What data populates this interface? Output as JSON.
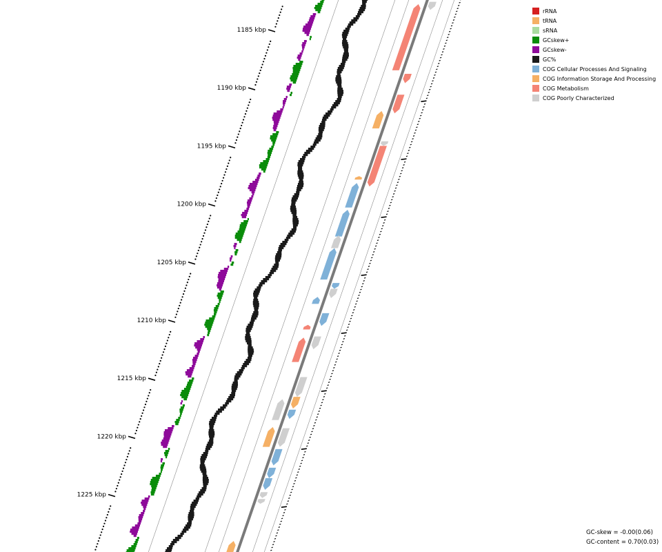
{
  "colors": {
    "rRNA": "#d62020",
    "tRNA": "#f5b065",
    "sRNA": "#a9dba0",
    "gcskew_pos": "#0a8c0a",
    "gcskew_neg": "#8e0a9a",
    "gc_content": "#1a1a1a",
    "cog_cellular": "#7fb1d8",
    "cog_info": "#f5b065",
    "cog_metabolism": "#f48475",
    "cog_poor": "#cfcfcf",
    "backbone": "#7a7a7a"
  },
  "ruler": {
    "labels": [
      "1185 kbp",
      "1190 kbp",
      "1195 kbp",
      "1200 kbp",
      "1205 kbp",
      "1210 kbp",
      "1215 kbp",
      "1220 kbp",
      "1225 kbp"
    ]
  },
  "legend": {
    "items": [
      {
        "label": "rRNA",
        "color": "#d62020"
      },
      {
        "label": "tRNA",
        "color": "#f5b065"
      },
      {
        "label": "sRNA",
        "color": "#a9dba0"
      },
      {
        "label": "GCskew+",
        "color": "#0a8c0a"
      },
      {
        "label": "GCskew-",
        "color": "#8e0a9a"
      },
      {
        "label": "GC%",
        "color": "#1a1a1a"
      },
      {
        "label": "COG Cellular Processes And Signaling",
        "color": "#7fb1d8"
      },
      {
        "label": "COG Information Storage And Processing",
        "color": "#f5b065"
      },
      {
        "label": "COG Metabolism",
        "color": "#f48475"
      },
      {
        "label": "COG Poorly Characterized",
        "color": "#cfcfcf"
      }
    ]
  },
  "stats": {
    "gc_skew": "GC-skew = -0.00(0.06)",
    "gc_content": "GC-content = 0.70(0.03)"
  },
  "features": {
    "forward": [
      {
        "start": 1180.5,
        "end": 1181.3,
        "cog": "cog_metabolism"
      },
      {
        "start": 1182.8,
        "end": 1188.5,
        "cog": "cog_metabolism"
      },
      {
        "start": 1192.0,
        "end": 1193.5,
        "cog": "cog_info"
      },
      {
        "start": 1197.6,
        "end": 1197.9,
        "cog": "cog_info"
      },
      {
        "start": 1198.2,
        "end": 1200.3,
        "cog": "cog_cellular"
      },
      {
        "start": 1200.5,
        "end": 1202.8,
        "cog": "cog_cellular"
      },
      {
        "start": 1202.7,
        "end": 1203.8,
        "cog": "cog_poor"
      },
      {
        "start": 1203.8,
        "end": 1206.5,
        "cog": "cog_cellular"
      },
      {
        "start": 1208.0,
        "end": 1208.6,
        "cog": "cog_cellular"
      },
      {
        "start": 1210.4,
        "end": 1210.8,
        "cog": "cog_metabolism"
      },
      {
        "start": 1211.5,
        "end": 1213.6,
        "cog": "cog_metabolism"
      },
      {
        "start": 1216.8,
        "end": 1218.6,
        "cog": "cog_poor"
      },
      {
        "start": 1219.2,
        "end": 1220.9,
        "cog": "cog_info"
      },
      {
        "start": 1229.0,
        "end": 1230.8,
        "cog": "cog_info"
      },
      {
        "start": 1231.3,
        "end": 1232.0,
        "cog": "cog_poor"
      }
    ],
    "reverse": [
      {
        "start": 1181.3,
        "end": 1182.3,
        "cog": "cog_info"
      },
      {
        "start": 1182.6,
        "end": 1183.3,
        "cog": "cog_poor"
      },
      {
        "start": 1188.8,
        "end": 1189.6,
        "cog": "cog_metabolism"
      },
      {
        "start": 1190.6,
        "end": 1192.2,
        "cog": "cog_metabolism"
      },
      {
        "start": 1194.6,
        "end": 1195.0,
        "cog": "cog_poor"
      },
      {
        "start": 1195.0,
        "end": 1198.5,
        "cog": "cog_metabolism"
      },
      {
        "start": 1206.8,
        "end": 1207.3,
        "cog": "cog_cellular"
      },
      {
        "start": 1207.3,
        "end": 1208.1,
        "cog": "cog_poor"
      },
      {
        "start": 1209.4,
        "end": 1210.5,
        "cog": "cog_cellular"
      },
      {
        "start": 1211.4,
        "end": 1212.5,
        "cog": "cog_poor"
      },
      {
        "start": 1214.9,
        "end": 1216.6,
        "cog": "cog_poor"
      },
      {
        "start": 1216.6,
        "end": 1217.6,
        "cog": "cog_info"
      },
      {
        "start": 1217.7,
        "end": 1218.5,
        "cog": "cog_cellular"
      },
      {
        "start": 1219.3,
        "end": 1220.9,
        "cog": "cog_poor"
      },
      {
        "start": 1221.1,
        "end": 1222.5,
        "cog": "cog_cellular"
      },
      {
        "start": 1222.7,
        "end": 1223.6,
        "cog": "cog_cellular"
      },
      {
        "start": 1223.6,
        "end": 1224.6,
        "cog": "cog_cellular"
      },
      {
        "start": 1224.8,
        "end": 1225.3,
        "cog": "cog_poor"
      },
      {
        "start": 1225.4,
        "end": 1225.8,
        "cog": "cog_poor"
      }
    ]
  }
}
